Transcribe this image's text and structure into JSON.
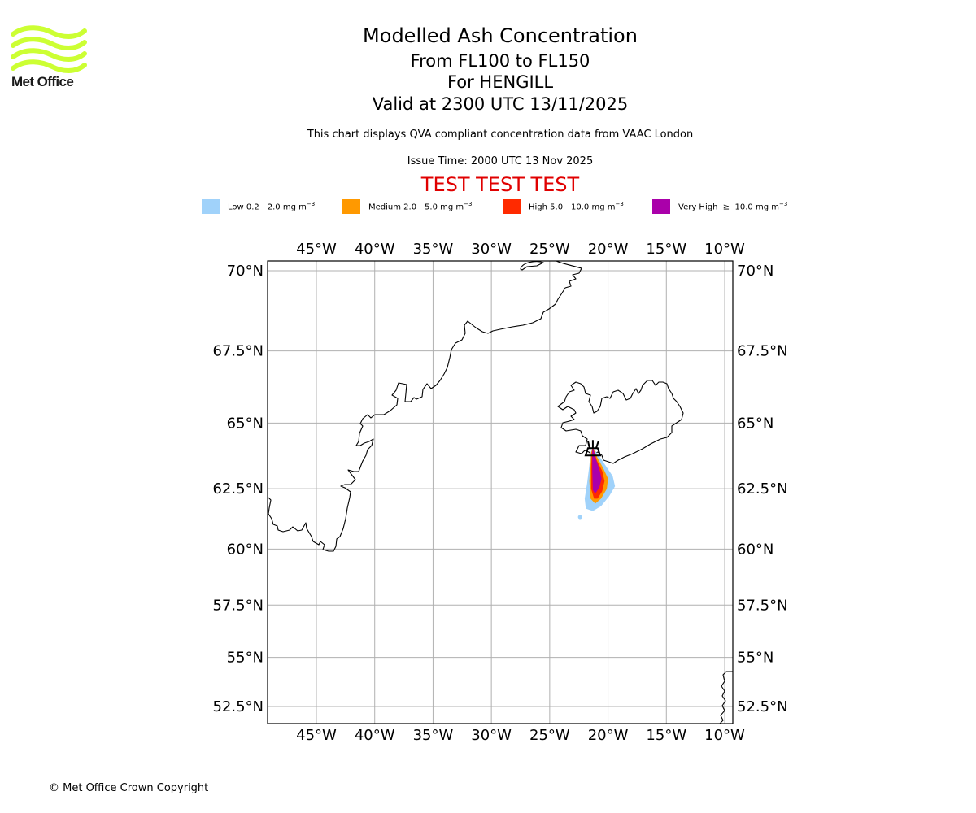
{
  "logo": {
    "text": "Met Office",
    "color": "#ccff33"
  },
  "header": {
    "title": "Modelled Ash Concentration",
    "levels": "From FL100 to FL150",
    "volcano": "For HENGILL",
    "valid": "Valid at 2300 UTC 13/11/2025",
    "description": "This chart displays QVA compliant concentration data from VAAC London",
    "issue_time": "Issue Time: 2000 UTC 13 Nov 2025",
    "test_banner": "TEST TEST TEST",
    "test_color": "#e00000"
  },
  "legend": [
    {
      "name": "Low",
      "text": "Low 0.2 - 2.0 mg m",
      "exp": "−3",
      "color": "#a0d2fa"
    },
    {
      "name": "Medium",
      "text": "Medium 2.0 - 5.0 mg m",
      "exp": "−3",
      "color": "#ff9900"
    },
    {
      "name": "High",
      "text": "High 5.0 - 10.0 mg m",
      "exp": "−3",
      "color": "#ff2a00"
    },
    {
      "name": "Very High",
      "text": "Very High  ≥  10.0 mg m",
      "exp": "−3",
      "color": "#aa00aa"
    }
  ],
  "chart_data": {
    "type": "map",
    "title": "Modelled Ash Concentration",
    "projection": "mercator",
    "extent": {
      "lon": [
        -49.2,
        -9.4
      ],
      "lat": [
        51.8,
        70.3
      ]
    },
    "grid": true,
    "lon_ticks": [
      {
        "value": -45,
        "label": "45°W"
      },
      {
        "value": -40,
        "label": "40°W"
      },
      {
        "value": -35,
        "label": "35°W"
      },
      {
        "value": -30,
        "label": "30°W"
      },
      {
        "value": -25,
        "label": "25°W"
      },
      {
        "value": -20,
        "label": "20°W"
      },
      {
        "value": -15,
        "label": "15°W"
      },
      {
        "value": -10,
        "label": "10°W"
      }
    ],
    "lat_ticks": [
      {
        "value": 70,
        "label": "70°N"
      },
      {
        "value": 67.5,
        "label": "67.5°N"
      },
      {
        "value": 65,
        "label": "65°N"
      },
      {
        "value": 62.5,
        "label": "62.5°N"
      },
      {
        "value": 60,
        "label": "60°N"
      },
      {
        "value": 57.5,
        "label": "57.5°N"
      },
      {
        "value": 55,
        "label": "55°N"
      },
      {
        "value": 52.5,
        "label": "52.5°N"
      }
    ],
    "volcano": {
      "name": "HENGILL",
      "lon": -21.3,
      "lat": 64.1
    },
    "ash_regions": [
      {
        "level": "Low",
        "color": "#a0d2fa",
        "polygon": [
          [
            -21.3,
            64.1
          ],
          [
            -20.8,
            63.8
          ],
          [
            -20.2,
            63.4
          ],
          [
            -19.6,
            63.0
          ],
          [
            -19.4,
            62.6
          ],
          [
            -19.9,
            62.2
          ],
          [
            -20.6,
            61.8
          ],
          [
            -21.3,
            61.6
          ],
          [
            -21.9,
            61.7
          ],
          [
            -22.0,
            62.1
          ],
          [
            -21.8,
            62.7
          ],
          [
            -21.6,
            63.4
          ],
          [
            -21.5,
            63.9
          ]
        ]
      },
      {
        "level": "Medium",
        "color": "#ff9900",
        "polygon": [
          [
            -21.3,
            64.1
          ],
          [
            -20.9,
            63.7
          ],
          [
            -20.4,
            63.3
          ],
          [
            -20.0,
            62.9
          ],
          [
            -20.1,
            62.5
          ],
          [
            -20.6,
            62.1
          ],
          [
            -21.1,
            61.9
          ],
          [
            -21.5,
            62.1
          ],
          [
            -21.6,
            62.8
          ],
          [
            -21.5,
            63.5
          ],
          [
            -21.45,
            63.9
          ]
        ]
      },
      {
        "level": "High",
        "color": "#ff2a00",
        "polygon": [
          [
            -21.3,
            64.1
          ],
          [
            -20.95,
            63.6
          ],
          [
            -20.5,
            63.2
          ],
          [
            -20.3,
            62.8
          ],
          [
            -20.5,
            62.4
          ],
          [
            -20.9,
            62.1
          ],
          [
            -21.2,
            62.1
          ],
          [
            -21.45,
            62.5
          ],
          [
            -21.45,
            63.3
          ],
          [
            -21.4,
            63.9
          ]
        ]
      },
      {
        "level": "Very High",
        "color": "#aa00aa",
        "polygon": [
          [
            -21.3,
            64.1
          ],
          [
            -21.0,
            63.6
          ],
          [
            -20.7,
            63.2
          ],
          [
            -20.55,
            62.9
          ],
          [
            -20.75,
            62.55
          ],
          [
            -21.1,
            62.3
          ],
          [
            -21.3,
            62.45
          ],
          [
            -21.35,
            63.2
          ],
          [
            -21.35,
            63.9
          ]
        ]
      }
    ]
  },
  "footer": {
    "copyright": "© Met Office Crown Copyright"
  }
}
